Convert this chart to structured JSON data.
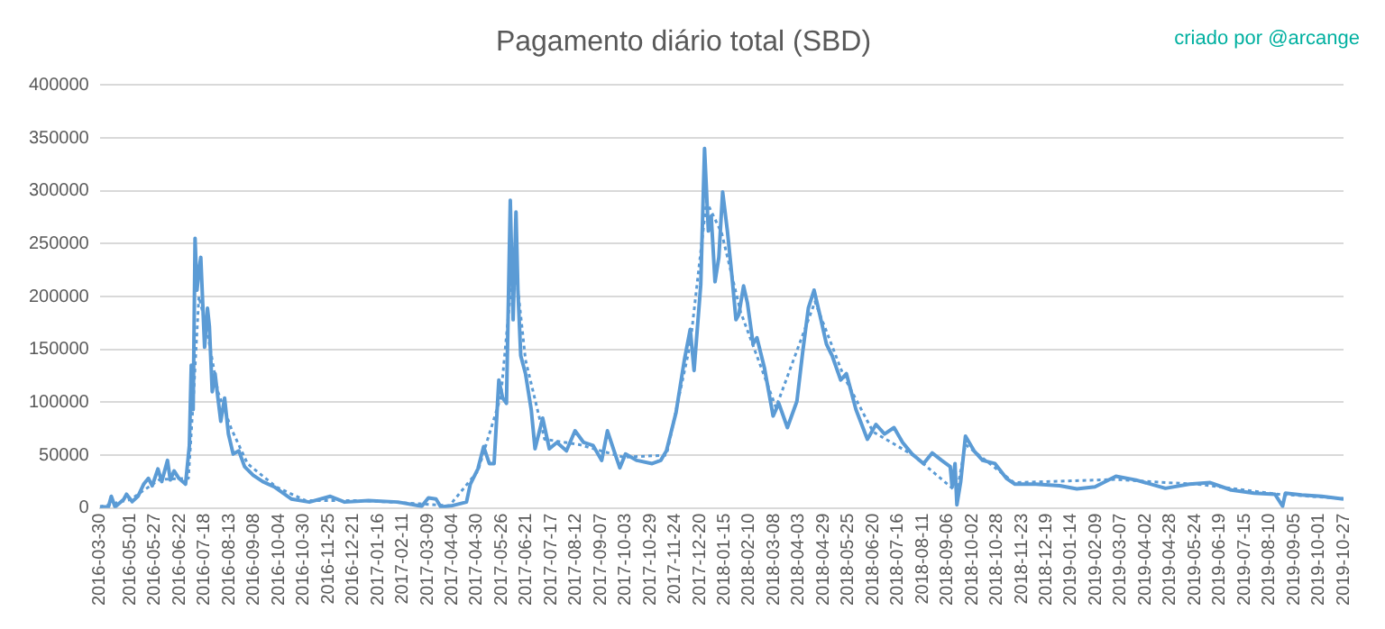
{
  "chart_data": {
    "type": "line",
    "title": "Pagamento diário total (SBD)",
    "annotations": [
      "criado por @arcange"
    ],
    "series": [
      {
        "color": "#5b9bd5",
        "line_style": "solid",
        "x": [
          "2016-03-30",
          "2016-04-08",
          "2016-04-11",
          "2016-04-15",
          "2016-04-24",
          "2016-04-27",
          "2016-05-03",
          "2016-05-09",
          "2016-05-15",
          "2016-05-20",
          "2016-05-24",
          "2016-05-30",
          "2016-06-03",
          "2016-06-09",
          "2016-06-12",
          "2016-06-16",
          "2016-06-21",
          "2016-06-28",
          "2016-07-02",
          "2016-07-04",
          "2016-07-06",
          "2016-07-08",
          "2016-07-10",
          "2016-07-12",
          "2016-07-14",
          "2016-07-16",
          "2016-07-18",
          "2016-07-21",
          "2016-07-23",
          "2016-07-26",
          "2016-07-29",
          "2016-08-01",
          "2016-08-04",
          "2016-08-08",
          "2016-08-12",
          "2016-08-17",
          "2016-08-23",
          "2016-08-29",
          "2016-09-07",
          "2016-09-17",
          "2016-09-29",
          "2016-10-17",
          "2016-11-05",
          "2016-11-27",
          "2016-12-12",
          "2017-01-06",
          "2017-02-06",
          "2017-03-03",
          "2017-03-10",
          "2017-03-18",
          "2017-03-23",
          "2017-04-03",
          "2017-04-19",
          "2017-04-23",
          "2017-05-01",
          "2017-05-07",
          "2017-05-13",
          "2017-05-18",
          "2017-05-23",
          "2017-05-27",
          "2017-05-31",
          "2017-06-04",
          "2017-06-07",
          "2017-06-10",
          "2017-06-12",
          "2017-06-15",
          "2017-06-20",
          "2017-06-26",
          "2017-06-30",
          "2017-07-08",
          "2017-07-15",
          "2017-07-23",
          "2017-08-02",
          "2017-08-11",
          "2017-08-20",
          "2017-08-30",
          "2017-09-08",
          "2017-09-14",
          "2017-09-21",
          "2017-09-27",
          "2017-10-03",
          "2017-10-15",
          "2017-10-31",
          "2017-11-09",
          "2017-11-15",
          "2017-11-25",
          "2017-12-04",
          "2017-12-10",
          "2017-12-14",
          "2017-12-21",
          "2017-12-25",
          "2017-12-29",
          "2018-01-01",
          "2018-01-05",
          "2018-01-09",
          "2018-01-13",
          "2018-01-18",
          "2018-01-23",
          "2018-01-27",
          "2018-01-30",
          "2018-02-04",
          "2018-02-08",
          "2018-02-14",
          "2018-02-18",
          "2018-02-26",
          "2018-03-07",
          "2018-03-13",
          "2018-03-22",
          "2018-04-01",
          "2018-04-07",
          "2018-04-13",
          "2018-04-19",
          "2018-04-25",
          "2018-05-02",
          "2018-05-08",
          "2018-05-17",
          "2018-05-23",
          "2018-06-02",
          "2018-06-14",
          "2018-06-23",
          "2018-07-02",
          "2018-07-12",
          "2018-07-21",
          "2018-07-31",
          "2018-08-12",
          "2018-08-21",
          "2018-08-31",
          "2018-09-09",
          "2018-09-11",
          "2018-09-14",
          "2018-09-16",
          "2018-09-20",
          "2018-09-25",
          "2018-10-04",
          "2018-10-13",
          "2018-10-26",
          "2018-11-07",
          "2018-11-16",
          "2018-12-08",
          "2019-01-02",
          "2019-01-20",
          "2019-02-08",
          "2019-03-02",
          "2019-03-23",
          "2019-04-23",
          "2019-05-18",
          "2019-06-09",
          "2019-07-01",
          "2019-07-25",
          "2019-08-16",
          "2019-08-24",
          "2019-08-27",
          "2019-09-13",
          "2019-10-04",
          "2019-10-27"
        ],
        "values": [
          1000,
          1000,
          11000,
          1000,
          8000,
          13000,
          6000,
          11000,
          22500,
          28000,
          21000,
          37000,
          25000,
          45000,
          26500,
          35000,
          28000,
          22500,
          59000,
          135000,
          93000,
          255000,
          206000,
          224000,
          237000,
          194000,
          152000,
          189000,
          172000,
          110000,
          127000,
          104000,
          82000,
          104000,
          70000,
          51000,
          54000,
          39000,
          31000,
          25000,
          20000,
          8500,
          5600,
          11000,
          5600,
          7000,
          5600,
          1700,
          9600,
          8500,
          1000,
          2000,
          5600,
          22500,
          37000,
          58000,
          42000,
          42000,
          121000,
          104000,
          99000,
          291000,
          178000,
          280000,
          206000,
          144000,
          127000,
          93000,
          56000,
          85000,
          56000,
          62000,
          54000,
          73000,
          62000,
          59000,
          45000,
          73000,
          54000,
          38000,
          51000,
          45000,
          42000,
          45000,
          54000,
          90000,
          141000,
          169000,
          130000,
          211000,
          340000,
          262000,
          276000,
          214000,
          237000,
          299000,
          262000,
          217000,
          178000,
          183000,
          210000,
          194000,
          155000,
          161000,
          132000,
          87000,
          99000,
          76000,
          101000,
          147000,
          189000,
          206000,
          183000,
          155000,
          144000,
          121000,
          127000,
          93000,
          65000,
          79000,
          70000,
          76000,
          62000,
          51000,
          42000,
          52000,
          45000,
          39000,
          20000,
          42000,
          3000,
          25000,
          68000,
          54000,
          45000,
          42000,
          28000,
          22500,
          22500,
          21000,
          18000,
          20000,
          30000,
          26500,
          18600,
          22500,
          24000,
          17000,
          14000,
          13000,
          1700,
          14000,
          12400,
          11000,
          8500
        ]
      },
      {
        "color": "#5b9bd5",
        "line_style": "dotted",
        "x": [
          "2016-03-30",
          "2016-05-01",
          "2016-06-01",
          "2016-07-01",
          "2016-07-06",
          "2016-07-12",
          "2016-07-20",
          "2016-08-01",
          "2016-08-15",
          "2016-09-01",
          "2016-10-01",
          "2016-11-01",
          "2017-01-01",
          "2017-03-01",
          "2017-04-01",
          "2017-05-01",
          "2017-05-25",
          "2017-06-08",
          "2017-06-20",
          "2017-07-10",
          "2017-08-15",
          "2017-10-01",
          "2017-11-15",
          "2017-12-10",
          "2017-12-27",
          "2018-01-12",
          "2018-02-01",
          "2018-03-10",
          "2018-04-20",
          "2018-05-20",
          "2018-06-20",
          "2018-08-01",
          "2018-09-16",
          "2018-09-25",
          "2018-11-15",
          "2019-03-01",
          "2019-06-01",
          "2019-08-20",
          "2019-10-27"
        ],
        "values": [
          1000,
          8000,
          27000,
          28000,
          100000,
          200000,
          170000,
          110000,
          75000,
          42000,
          20000,
          7000,
          7000,
          4000,
          2000,
          35000,
          105000,
          240000,
          140000,
          65000,
          60000,
          48000,
          50000,
          155000,
          290000,
          260000,
          185000,
          95000,
          195000,
          125000,
          72000,
          50000,
          15000,
          60000,
          24000,
          27000,
          22000,
          13000,
          9000
        ]
      }
    ],
    "ylim": [
      0,
      400000
    ],
    "yticks": [
      0,
      50000,
      100000,
      150000,
      200000,
      250000,
      300000,
      350000,
      400000
    ],
    "xlim": [
      "2016-03-30",
      "2019-10-27"
    ],
    "xticks": [
      "2016-03-30",
      "2016-05-01",
      "2016-05-27",
      "2016-06-22",
      "2016-07-18",
      "2016-08-13",
      "2016-09-08",
      "2016-10-04",
      "2016-10-30",
      "2016-11-25",
      "2016-12-21",
      "2017-01-16",
      "2017-02-11",
      "2017-03-09",
      "2017-04-04",
      "2017-04-30",
      "2017-05-26",
      "2017-06-21",
      "2017-07-17",
      "2017-08-12",
      "2017-09-07",
      "2017-10-03",
      "2017-10-29",
      "2017-11-24",
      "2017-12-20",
      "2018-01-15",
      "2018-02-10",
      "2018-03-08",
      "2018-04-03",
      "2018-04-29",
      "2018-05-25",
      "2018-06-20",
      "2018-07-16",
      "2018-08-11",
      "2018-09-06",
      "2018-10-02",
      "2018-10-28",
      "2018-11-23",
      "2018-12-19",
      "2019-01-14",
      "2019-02-09",
      "2019-03-07",
      "2019-04-02",
      "2019-04-28",
      "2019-05-24",
      "2019-06-19",
      "2019-07-15",
      "2019-08-10",
      "2019-09-05",
      "2019-10-01",
      "2019-10-27"
    ],
    "grid": "y",
    "legend": false,
    "marker": "none"
  }
}
